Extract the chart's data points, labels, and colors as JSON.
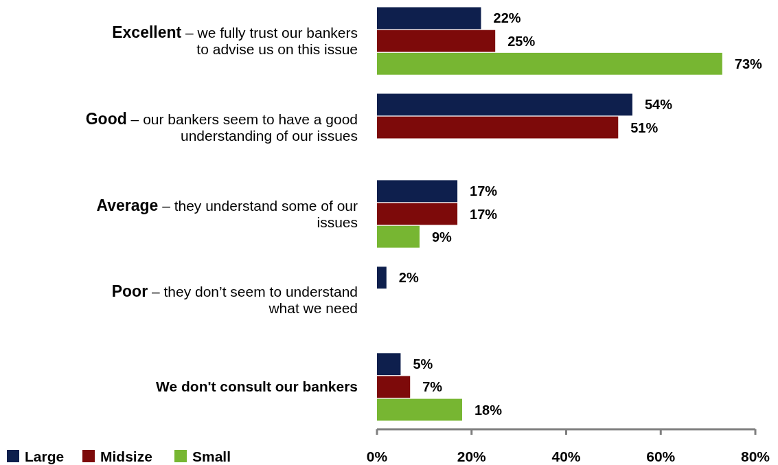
{
  "chart_data": {
    "type": "bar",
    "orientation": "horizontal",
    "categories": [
      "Excellent – we fully trust our bankers to advise us on this issue",
      "Good – our bankers seem to have a good understanding of our issues",
      "Average – they understand some of our issues",
      "Poor – they don’t seem to understand what we need",
      "We don't consult our bankers"
    ],
    "series": [
      {
        "name": "Large",
        "color": "#0e1f4d",
        "values": [
          22,
          54,
          17,
          2,
          5
        ],
        "value_labels": [
          "22%",
          "54%",
          "17%",
          "2%",
          "5%"
        ]
      },
      {
        "name": "Midsize",
        "color": "#7d0a0a",
        "values": [
          25,
          51,
          17,
          null,
          7
        ],
        "value_labels": [
          "25%",
          "51%",
          "17%",
          null,
          "7%"
        ]
      },
      {
        "name": "Small",
        "color": "#77b632",
        "values": [
          73,
          null,
          9,
          null,
          18
        ],
        "value_labels": [
          "73%",
          null,
          "9%",
          null,
          "18%"
        ]
      }
    ],
    "xlim": [
      0,
      80
    ],
    "xticks": [
      {
        "value": 0,
        "label": "0%"
      },
      {
        "value": 20,
        "label": "20%"
      },
      {
        "value": 40,
        "label": "40%"
      },
      {
        "value": 60,
        "label": "60%"
      },
      {
        "value": 80,
        "label": "80%"
      }
    ],
    "grid": false,
    "legend": "bottom left"
  }
}
